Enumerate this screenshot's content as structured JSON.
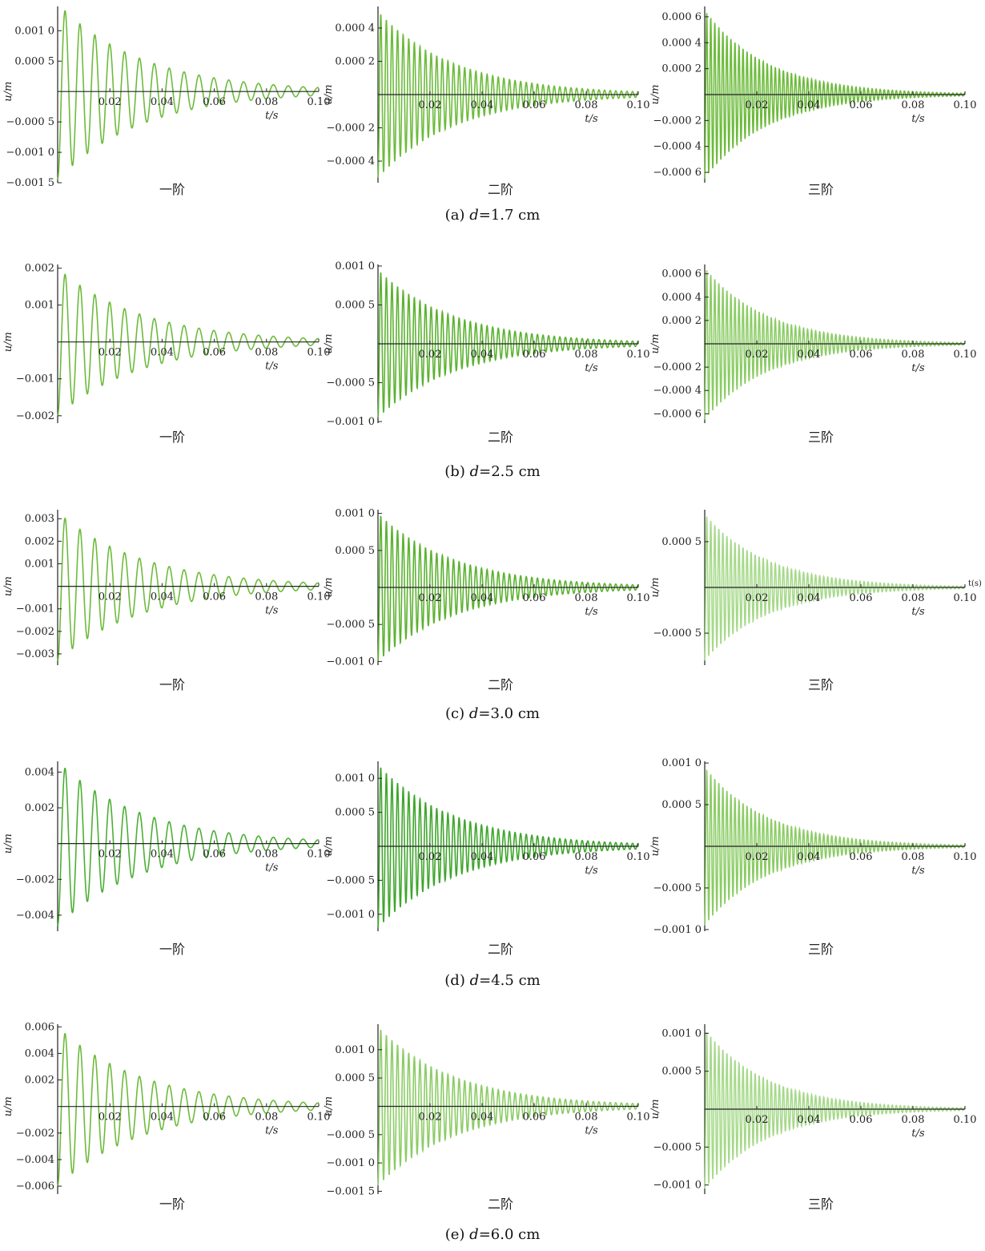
{
  "figure": {
    "rows": [
      {
        "label": "(a)",
        "var": "d",
        "eq": "=",
        "value": "1.7 cm"
      },
      {
        "label": "(b)",
        "var": "d",
        "eq": "=",
        "value": "2.5 cm"
      },
      {
        "label": "(c)",
        "var": "d",
        "eq": "=",
        "value": "3.0 cm"
      },
      {
        "label": "(d)",
        "var": "d",
        "eq": "=",
        "value": "4.5 cm"
      },
      {
        "label": "(e)",
        "var": "d",
        "eq": "=",
        "value": "6.0 cm"
      }
    ]
  },
  "chart_data": [
    {
      "type": "line",
      "row": 0,
      "col": 0,
      "subtitle": "一阶",
      "ylabel": "u/m",
      "xlabel": "t/s",
      "xlim": [
        0,
        0.1
      ],
      "ylim": [
        -0.0015,
        0.0014
      ],
      "xticks": [
        "0.02",
        "0.04",
        "0.06",
        "0.08",
        "0.10"
      ],
      "yticks": [
        {
          "v": 0.001,
          "t": "0.001 0"
        },
        {
          "v": 0.0005,
          "t": "0.000 5"
        },
        {
          "v": -0.0005,
          "t": "−0.000 5"
        },
        {
          "v": -0.001,
          "t": "−0.001 0"
        },
        {
          "v": -0.0015,
          "t": "−0.001 5"
        }
      ],
      "series": [
        {
          "amplitude": 0.00145,
          "period": 0.0057,
          "decay": 0.1,
          "color": "#6dbb3c"
        }
      ]
    },
    {
      "type": "line",
      "row": 0,
      "col": 1,
      "subtitle": "二阶",
      "ylabel": "u/m",
      "xlabel": "t/s",
      "xlim": [
        0,
        0.1
      ],
      "ylim": [
        -0.00053,
        0.00053
      ],
      "xticks": [
        "0.02",
        "0.04",
        "0.06",
        "0.08",
        "0.10"
      ],
      "yticks": [
        {
          "v": 0.0004,
          "t": "0.000 4"
        },
        {
          "v": 0.0002,
          "t": "0.000 2"
        },
        {
          "v": -0.0002,
          "t": "−0.000 2"
        },
        {
          "v": -0.0004,
          "t": "−0.000 4"
        }
      ],
      "series": [
        {
          "amplitude": 0.0005,
          "period": 0.00215,
          "decay": 0.092,
          "color": "#6dbb3c"
        }
      ]
    },
    {
      "type": "line",
      "row": 0,
      "col": 2,
      "subtitle": "三阶",
      "ylabel": "u/m",
      "xlabel": "t/s",
      "xlim": [
        0,
        0.1
      ],
      "ylim": [
        -0.00068,
        0.00068
      ],
      "xticks": [
        "0.02",
        "0.04",
        "0.06",
        "0.08",
        "0.10"
      ],
      "yticks": [
        {
          "v": 0.0006,
          "t": "0.000 6"
        },
        {
          "v": 0.0004,
          "t": "0.000 4"
        },
        {
          "v": 0.0002,
          "t": "0.000 2"
        },
        {
          "v": -0.0002,
          "t": "−0.000 2"
        },
        {
          "v": -0.0004,
          "t": "−0.000 4"
        },
        {
          "v": -0.0006,
          "t": "−0.000 6"
        }
      ],
      "series": [
        {
          "amplitude": 0.00065,
          "period": 0.00155,
          "decay": 0.075,
          "color": "#6dbb3c"
        }
      ]
    },
    {
      "type": "line",
      "row": 1,
      "col": 0,
      "subtitle": "一阶",
      "ylabel": "u/m",
      "xlabel": "t/s",
      "xlim": [
        0,
        0.1
      ],
      "ylim": [
        -0.0022,
        0.0021
      ],
      "xticks": [
        "0.02",
        "0.04",
        "0.06",
        "0.08",
        "0.10"
      ],
      "yticks": [
        {
          "v": 0.002,
          "t": "0.002"
        },
        {
          "v": 0.001,
          "t": "0.001"
        },
        {
          "v": -0.001,
          "t": "−0.001"
        },
        {
          "v": -0.002,
          "t": "−0.002"
        }
      ],
      "series": [
        {
          "amplitude": 0.002,
          "period": 0.0057,
          "decay": 0.1,
          "color": "#6dbb3c"
        }
      ]
    },
    {
      "type": "line",
      "row": 1,
      "col": 1,
      "subtitle": "二阶",
      "ylabel": "u/m",
      "xlabel": "t/s",
      "xlim": [
        0,
        0.1
      ],
      "ylim": [
        -0.00102,
        0.00102
      ],
      "xticks": [
        "0.02",
        "0.04",
        "0.06",
        "0.08",
        "0.10"
      ],
      "yticks": [
        {
          "v": 0.001,
          "t": "0.001 0"
        },
        {
          "v": 0.0005,
          "t": "0.000 5"
        },
        {
          "v": -0.0005,
          "t": "−0.000 5"
        },
        {
          "v": -0.001,
          "t": "−0.001 0"
        }
      ],
      "series": [
        {
          "amplitude": 0.00095,
          "period": 0.00215,
          "decay": 0.092,
          "color": "#5cb231"
        }
      ]
    },
    {
      "type": "line",
      "row": 1,
      "col": 2,
      "subtitle": "三阶",
      "ylabel": "u/m",
      "xlabel": "t/s",
      "xlim": [
        0,
        0.1
      ],
      "ylim": [
        -0.00068,
        0.00068
      ],
      "xticks": [
        "0.02",
        "0.04",
        "0.06",
        "0.08",
        "0.10"
      ],
      "yticks": [
        {
          "v": 0.0006,
          "t": "0.000 6"
        },
        {
          "v": 0.0004,
          "t": "0.000 4"
        },
        {
          "v": 0.0002,
          "t": "0.000 2"
        },
        {
          "v": -0.0002,
          "t": "−0.000 2"
        },
        {
          "v": -0.0004,
          "t": "−0.000 4"
        },
        {
          "v": -0.0006,
          "t": "−0.000 6"
        }
      ],
      "series": [
        {
          "amplitude": 0.00065,
          "period": 0.00155,
          "decay": 0.075,
          "color": "#8ccc66"
        }
      ]
    },
    {
      "type": "line",
      "row": 2,
      "col": 0,
      "subtitle": "一阶",
      "ylabel": "u/m",
      "xlabel": "t/s",
      "xlim": [
        0,
        0.1
      ],
      "ylim": [
        -0.0035,
        0.0034
      ],
      "xticks": [
        "0.02",
        "0.04",
        "0.06",
        "0.08",
        "0.10"
      ],
      "yticks": [
        {
          "v": 0.003,
          "t": "0.003"
        },
        {
          "v": 0.002,
          "t": "0.002"
        },
        {
          "v": 0.001,
          "t": "0.001"
        },
        {
          "v": -0.001,
          "t": "−0.001"
        },
        {
          "v": -0.002,
          "t": "−0.002"
        },
        {
          "v": -0.003,
          "t": "−0.003"
        }
      ],
      "series": [
        {
          "amplitude": 0.0033,
          "period": 0.0057,
          "decay": 0.1,
          "color": "#6dbb3c"
        }
      ]
    },
    {
      "type": "line",
      "row": 2,
      "col": 1,
      "subtitle": "二阶",
      "ylabel": "u/m",
      "xlabel": "t/s",
      "xlim": [
        0,
        0.1
      ],
      "ylim": [
        -0.00105,
        0.00105
      ],
      "xticks": [
        "0.02",
        "0.04",
        "0.06",
        "0.08",
        "0.10"
      ],
      "yticks": [
        {
          "v": 0.001,
          "t": "0.001 0"
        },
        {
          "v": 0.0005,
          "t": "0.000 5"
        },
        {
          "v": -0.0005,
          "t": "−0.000 5"
        },
        {
          "v": -0.001,
          "t": "−0.001 0"
        }
      ],
      "series": [
        {
          "amplitude": 0.001,
          "period": 0.00215,
          "decay": 0.092,
          "color": "#5cb231"
        }
      ]
    },
    {
      "type": "line",
      "row": 2,
      "col": 2,
      "subtitle": "三阶",
      "ylabel": "u/m",
      "xlabel": "t/s",
      "xlabel_extra": "t(s)",
      "xlim": [
        0,
        0.1
      ],
      "ylim": [
        -0.00085,
        0.00085
      ],
      "xticks": [
        "0.02",
        "0.04",
        "0.06",
        "0.08",
        "0.10"
      ],
      "yticks": [
        {
          "v": 0.0005,
          "t": "0.000 5"
        },
        {
          "v": -0.0005,
          "t": "−0.000 5"
        }
      ],
      "series": [
        {
          "amplitude": 0.0008,
          "period": 0.00155,
          "decay": 0.075,
          "color": "#a6d98a"
        }
      ]
    },
    {
      "type": "line",
      "row": 3,
      "col": 0,
      "subtitle": "一阶",
      "ylabel": "u/m",
      "xlabel": "t/s",
      "xlim": [
        0,
        0.1
      ],
      "ylim": [
        -0.0049,
        0.0046
      ],
      "xticks": [
        "0.02",
        "0.04",
        "0.06",
        "0.08",
        "0.10"
      ],
      "yticks": [
        {
          "v": 0.004,
          "t": "0.004"
        },
        {
          "v": 0.002,
          "t": "0.002"
        },
        {
          "v": -0.002,
          "t": "−0.002"
        },
        {
          "v": -0.004,
          "t": "−0.004"
        }
      ],
      "series": [
        {
          "amplitude": 0.0046,
          "period": 0.0057,
          "decay": 0.1,
          "color": "#4caf35"
        }
      ]
    },
    {
      "type": "line",
      "row": 3,
      "col": 1,
      "subtitle": "二阶",
      "ylabel": "u/m",
      "xlabel": "t/s",
      "xlim": [
        0,
        0.1
      ],
      "ylim": [
        -0.00125,
        0.00125
      ],
      "xticks": [
        "0.02",
        "0.04",
        "0.06",
        "0.08",
        "0.10"
      ],
      "yticks": [
        {
          "v": 0.001,
          "t": "0.001 0"
        },
        {
          "v": 0.0005,
          "t": "0.000 5"
        },
        {
          "v": -0.0005,
          "t": "−0.000 5"
        },
        {
          "v": -0.001,
          "t": "−0.001 0"
        }
      ],
      "series": [
        {
          "amplitude": 0.0012,
          "period": 0.00215,
          "decay": 0.092,
          "color": "#3fa62c"
        }
      ]
    },
    {
      "type": "line",
      "row": 3,
      "col": 2,
      "subtitle": "三阶",
      "ylabel": "u/m",
      "xlabel": "t/s",
      "xlim": [
        0,
        0.1
      ],
      "ylim": [
        -0.00102,
        0.00102
      ],
      "xticks": [
        "0.02",
        "0.04",
        "0.06",
        "0.08",
        "0.10"
      ],
      "yticks": [
        {
          "v": 0.001,
          "t": "0.001 0"
        },
        {
          "v": 0.0005,
          "t": "0.000 5"
        },
        {
          "v": -0.0005,
          "t": "−0.000 5"
        },
        {
          "v": -0.001,
          "t": "−0.001 0"
        }
      ],
      "series": [
        {
          "amplitude": 0.00095,
          "period": 0.00155,
          "decay": 0.075,
          "color": "#8ccc66"
        }
      ]
    },
    {
      "type": "line",
      "row": 4,
      "col": 0,
      "subtitle": "一阶",
      "ylabel": "u/m",
      "xlabel": "t/s",
      "xlim": [
        0,
        0.1
      ],
      "ylim": [
        -0.0066,
        0.0062
      ],
      "xticks": [
        "0.02",
        "0.04",
        "0.06",
        "0.08",
        "0.10"
      ],
      "yticks": [
        {
          "v": 0.006,
          "t": "0.006"
        },
        {
          "v": 0.004,
          "t": "0.004"
        },
        {
          "v": 0.002,
          "t": "0.002"
        },
        {
          "v": -0.002,
          "t": "−0.002"
        },
        {
          "v": -0.004,
          "t": "−0.004"
        },
        {
          "v": -0.006,
          "t": "−0.006"
        }
      ],
      "series": [
        {
          "amplitude": 0.006,
          "period": 0.0057,
          "decay": 0.1,
          "color": "#6dbb3c"
        }
      ]
    },
    {
      "type": "line",
      "row": 4,
      "col": 1,
      "subtitle": "二阶",
      "ylabel": "u/m",
      "xlabel": "t/s",
      "xlim": [
        0,
        0.1
      ],
      "ylim": [
        -0.00155,
        0.00145
      ],
      "xticks": [
        "0.02",
        "0.04",
        "0.06",
        "0.08",
        "0.10"
      ],
      "yticks": [
        {
          "v": 0.001,
          "t": "0.001 0"
        },
        {
          "v": 0.0005,
          "t": "0.000 5"
        },
        {
          "v": -0.0005,
          "t": "−0.000 5"
        },
        {
          "v": -0.001,
          "t": "−0.001 0"
        },
        {
          "v": -0.0015,
          "t": "−0.001 5"
        }
      ],
      "series": [
        {
          "amplitude": 0.0014,
          "period": 0.00215,
          "decay": 0.092,
          "color": "#8ccc66"
        }
      ]
    },
    {
      "type": "line",
      "row": 4,
      "col": 2,
      "subtitle": "三阶",
      "ylabel": "u/m",
      "xlabel": "t/s",
      "xlim": [
        0,
        0.1
      ],
      "ylim": [
        -0.00112,
        0.00112
      ],
      "xticks": [
        "0.02",
        "0.04",
        "0.06",
        "0.08",
        "0.10"
      ],
      "yticks": [
        {
          "v": 0.001,
          "t": "0.001 0"
        },
        {
          "v": 0.0005,
          "t": "0.000 5"
        },
        {
          "v": -0.0005,
          "t": "−0.000 5"
        },
        {
          "v": -0.001,
          "t": "−0.001 0"
        }
      ],
      "series": [
        {
          "amplitude": 0.00105,
          "period": 0.00155,
          "decay": 0.075,
          "color": "#a6d98a"
        }
      ]
    }
  ]
}
